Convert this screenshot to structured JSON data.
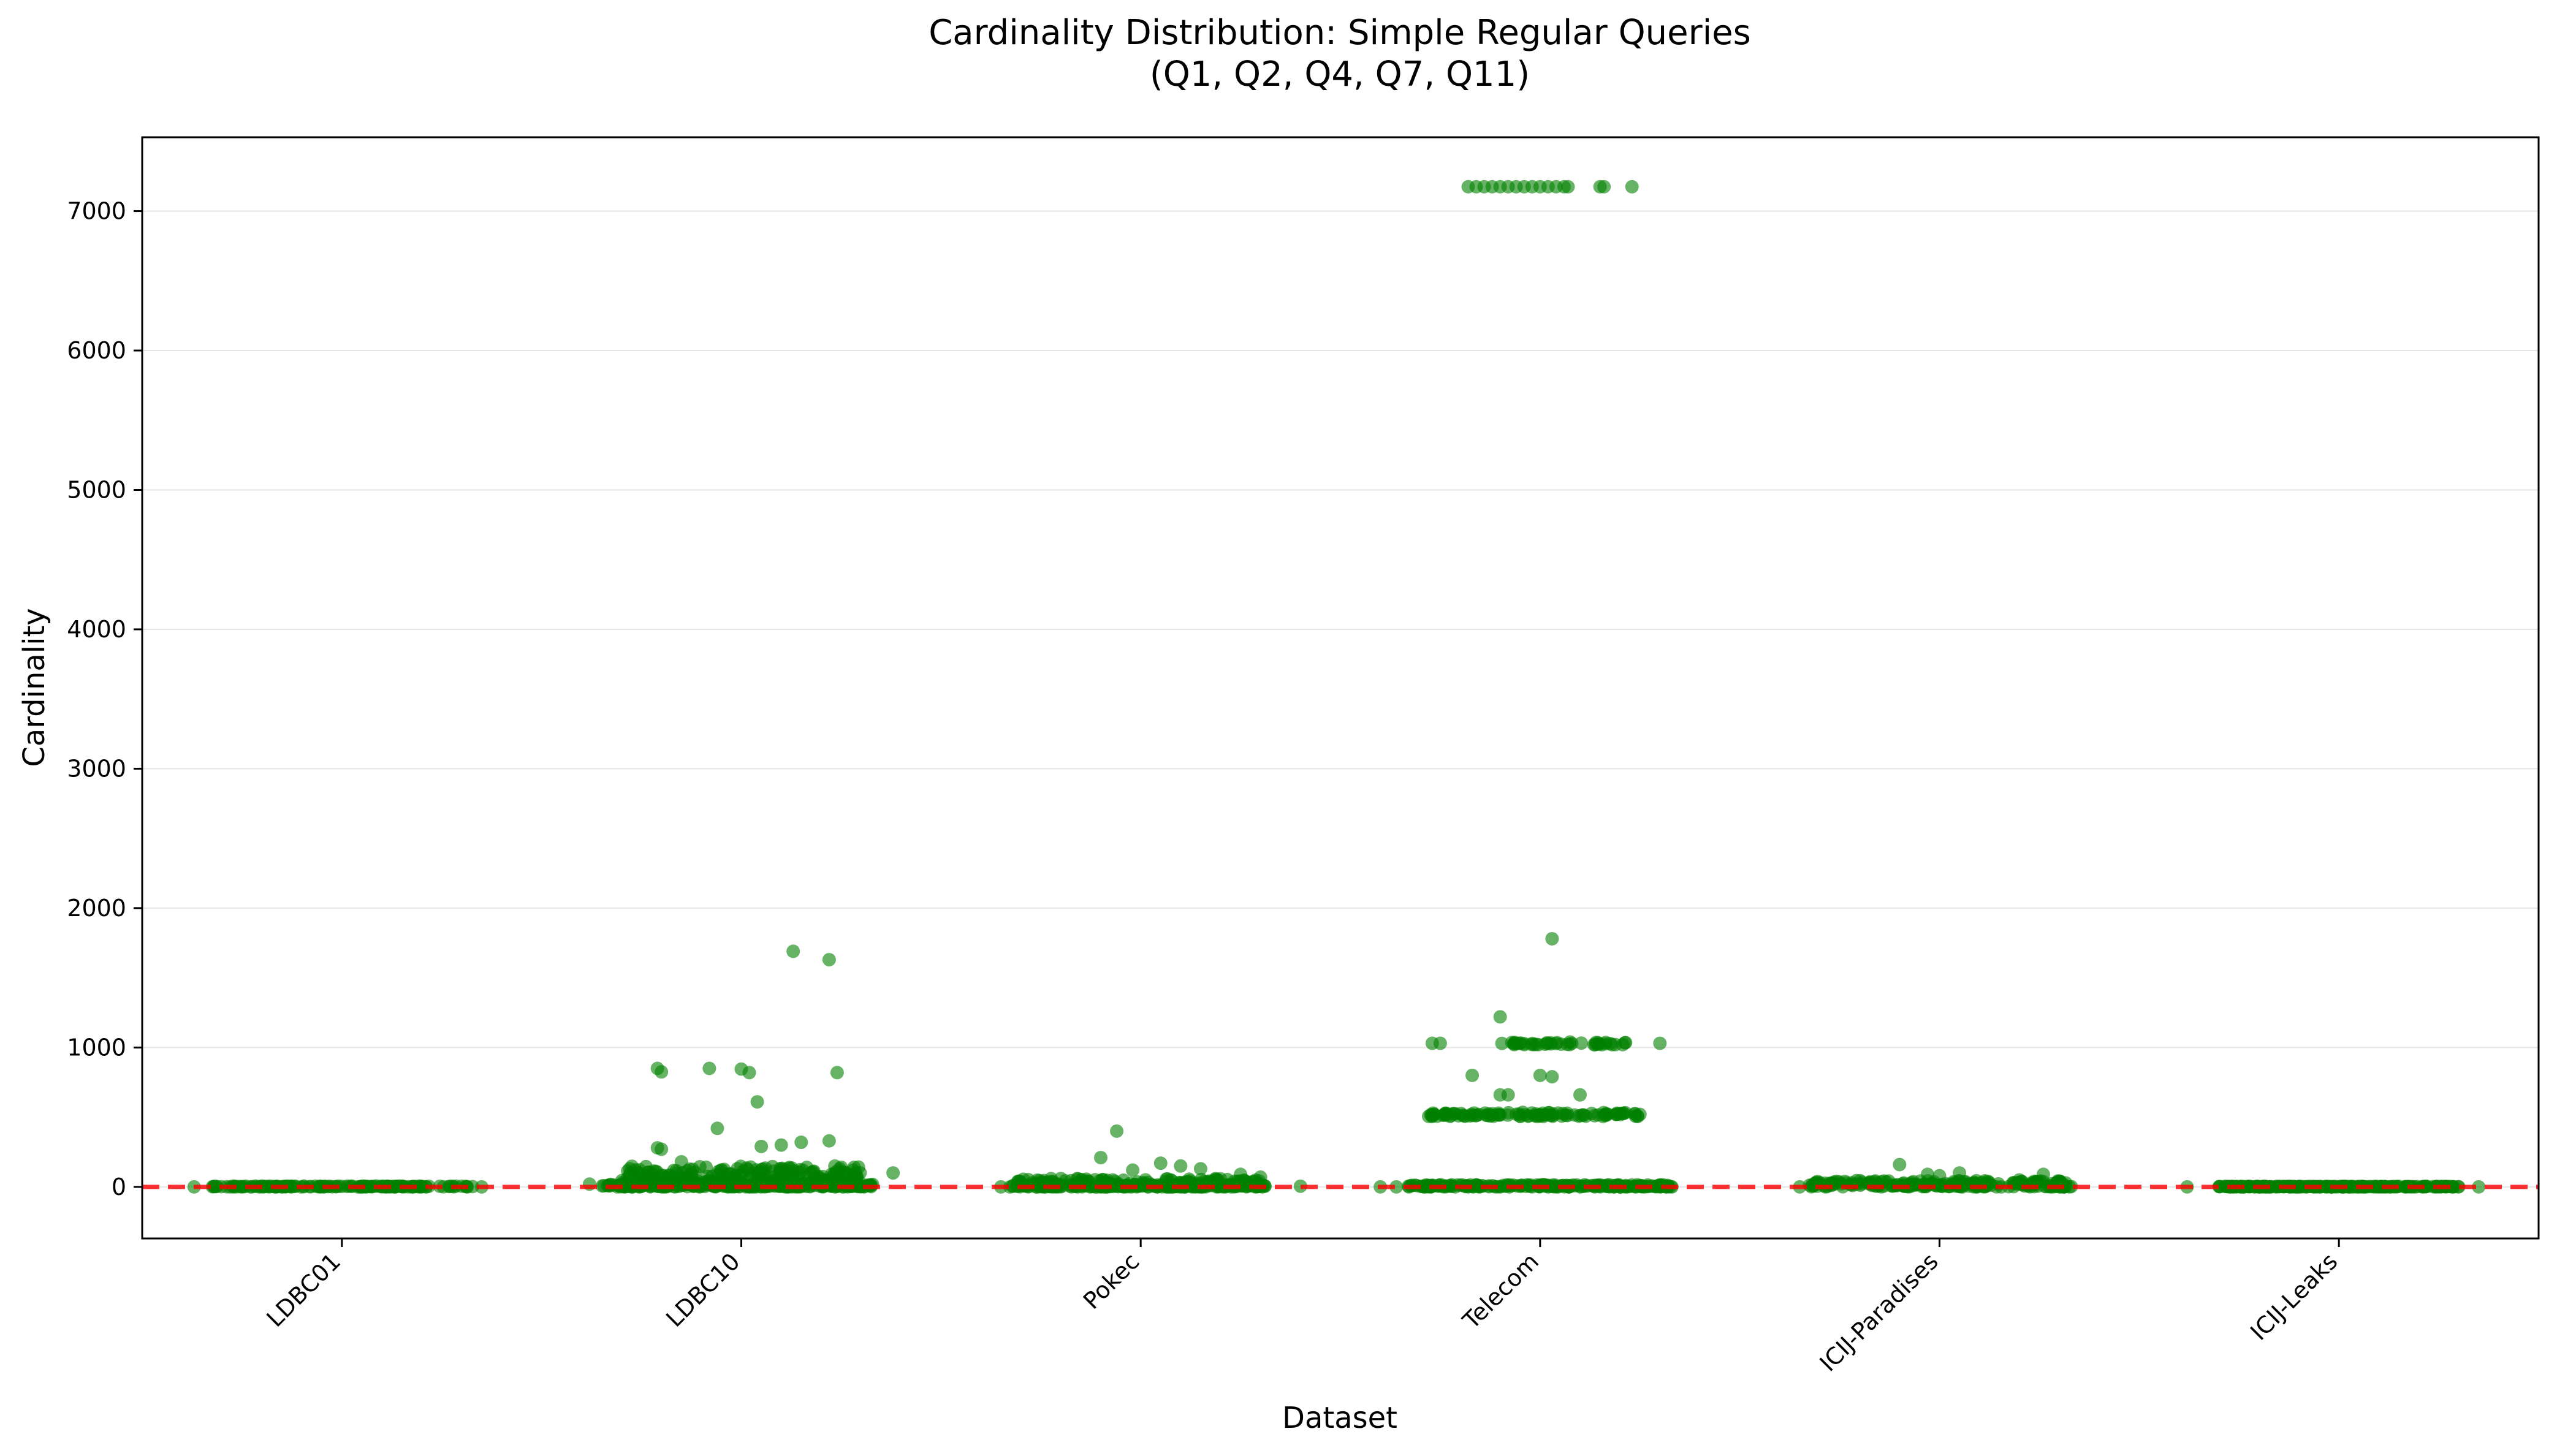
{
  "chart_data": {
    "type": "scatter",
    "title": "Cardinality Distribution: Simple Regular Queries",
    "subtitle": "(Q1, Q2, Q4, Q7, Q11)",
    "xlabel": "Dataset",
    "ylabel": "Cardinality",
    "categories": [
      "LDBC01",
      "LDBC10",
      "Pokec",
      "Telecom",
      "ICIJ-Paradises",
      "ICIJ-Leaks"
    ],
    "ylim": [
      -370,
      7530
    ],
    "yticks": [
      0,
      1000,
      2000,
      3000,
      4000,
      5000,
      6000,
      7000
    ],
    "grid": "y",
    "legend": "none",
    "reference_line": {
      "y": 0,
      "style": "dashed",
      "color": "#ff0000"
    },
    "point_color": "#008000",
    "point_opacity": 0.6,
    "series": [
      {
        "category": "LDBC01",
        "x_jitter": [
          -0.37,
          -0.32,
          -0.28,
          -0.2,
          -0.15,
          0.05,
          0.15,
          0.3,
          0.35
        ],
        "values": [
          0,
          3,
          0,
          6,
          1,
          4,
          2,
          5,
          0
        ],
        "dense_bands": [
          {
            "x_range": [
              -0.33,
              0.33
            ],
            "y_range": [
              0,
              6
            ],
            "count": 140
          }
        ]
      },
      {
        "category": "LDBC10",
        "x_jitter": [
          0.13,
          0.22,
          -0.21,
          -0.2,
          -0.08,
          0.0,
          0.02,
          0.24,
          0.04,
          -0.06,
          -0.2,
          -0.21,
          0.1,
          0.22,
          0.15,
          0.05,
          -0.15,
          0.28,
          0.38,
          -0.38,
          -0.3,
          -0.25,
          -0.05,
          0.1,
          0.2
        ],
        "values": [
          1690,
          1630,
          850,
          825,
          850,
          845,
          820,
          820,
          610,
          420,
          270,
          280,
          300,
          330,
          320,
          290,
          180,
          120,
          100,
          20,
          10,
          30,
          50,
          40,
          60
        ],
        "dense_bands": [
          {
            "x_range": [
              -0.3,
              0.3
            ],
            "y_range": [
              0,
              150
            ],
            "count": 320
          },
          {
            "x_range": [
              -0.35,
              0.35
            ],
            "y_range": [
              0,
              20
            ],
            "count": 120
          }
        ]
      },
      {
        "category": "Pokec",
        "x_jitter": [
          -0.06,
          -0.1,
          0.05,
          0.1,
          0.15,
          -0.02,
          0.25,
          0.4,
          -0.35,
          -0.2,
          0.3
        ],
        "values": [
          400,
          210,
          170,
          150,
          130,
          120,
          90,
          5,
          0,
          60,
          70
        ],
        "dense_bands": [
          {
            "x_range": [
              -0.33,
              0.3
            ],
            "y_range": [
              0,
              60
            ],
            "count": 220
          },
          {
            "x_range": [
              -0.33,
              0.33
            ],
            "y_range": [
              0,
              10
            ],
            "count": 80
          }
        ]
      },
      {
        "category": "Telecom",
        "x_jitter": [
          -0.18,
          -0.16,
          -0.14,
          -0.12,
          -0.1,
          -0.08,
          -0.06,
          -0.04,
          -0.02,
          0.0,
          0.02,
          0.04,
          0.06,
          0.07,
          0.15,
          0.16,
          0.23,
          0.03,
          -0.1,
          -0.27,
          -0.25,
          0.3,
          -0.17,
          -0.08,
          -0.1,
          0.0,
          0.03,
          0.1,
          0.25,
          -0.4,
          -0.36,
          0.2,
          0.33
        ],
        "values": [
          7175,
          7175,
          7175,
          7175,
          7175,
          7175,
          7175,
          7175,
          7175,
          7175,
          7175,
          7175,
          7175,
          7175,
          7175,
          7175,
          7175,
          1780,
          1220,
          1030,
          1030,
          1030,
          800,
          660,
          660,
          800,
          790,
          660,
          520,
          0,
          0,
          0,
          0
        ],
        "dense_bands": [
          {
            "x_range": [
              -0.28,
              0.25
            ],
            "y_range": [
              505,
              535
            ],
            "count": 110
          },
          {
            "x_range": [
              -0.1,
              0.22
            ],
            "y_range": [
              1020,
              1040
            ],
            "count": 45
          },
          {
            "x_range": [
              -0.33,
              0.33
            ],
            "y_range": [
              0,
              15
            ],
            "count": 200
          }
        ]
      },
      {
        "category": "ICIJ-Paradises",
        "x_jitter": [
          -0.1,
          -0.03,
          0.0,
          0.05,
          0.26,
          -0.3,
          0.2,
          0.3,
          -0.35
        ],
        "values": [
          160,
          90,
          80,
          100,
          90,
          30,
          50,
          20,
          0
        ],
        "dense_bands": [
          {
            "x_range": [
              -0.33,
              0.33
            ],
            "y_range": [
              0,
              45
            ],
            "count": 220
          }
        ]
      },
      {
        "category": "ICIJ-Leaks",
        "x_jitter": [
          -0.38,
          -0.3,
          0.3,
          0.35
        ],
        "values": [
          0,
          2,
          1,
          0
        ],
        "dense_bands": [
          {
            "x_range": [
              -0.3,
              0.3
            ],
            "y_range": [
              0,
              4
            ],
            "count": 200
          }
        ]
      }
    ]
  }
}
